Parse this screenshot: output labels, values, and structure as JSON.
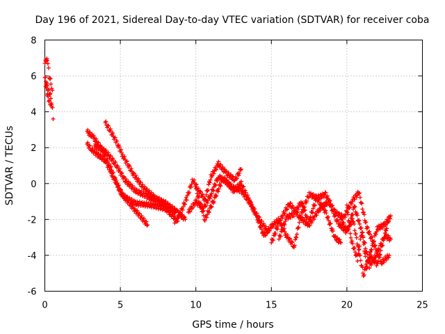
{
  "chart_data": {
    "type": "scatter",
    "title": "Day 196 of 2021, Sidereal Day-to-day VTEC variation (SDTVAR) for receiver coba",
    "xlabel": "GPS time / hours",
    "ylabel": "SDTVAR / TECUs",
    "xlim": [
      0,
      25
    ],
    "ylim": [
      -6,
      8
    ],
    "xticks": [
      0,
      5,
      10,
      15,
      20,
      25
    ],
    "yticks": [
      -6,
      -4,
      -2,
      0,
      2,
      4,
      6,
      8
    ],
    "xtick_labels": [
      "0",
      "5",
      "10",
      "15",
      "20",
      "25"
    ],
    "ytick_labels": [
      "-6",
      "-4",
      "-2",
      "0",
      "2",
      "4",
      "6",
      "8"
    ],
    "grid": true,
    "marker": "plus",
    "color": "#ff0000",
    "series": [
      {
        "x": [
          0.0,
          0.1,
          0.2,
          0.3,
          0.4,
          0.5
        ],
        "y": [
          6.7,
          6.9,
          6.8,
          6.0,
          5.6,
          5.2
        ]
      },
      {
        "x": [
          0.0,
          0.1,
          0.2,
          0.3,
          0.4,
          0.5,
          0.55
        ],
        "y": [
          5.9,
          5.6,
          5.3,
          5.1,
          4.8,
          4.2,
          3.6
        ]
      },
      {
        "x": [
          0.05,
          0.15,
          0.25,
          0.35,
          0.45
        ],
        "y": [
          5.4,
          5.0,
          4.7,
          4.5,
          4.3
        ]
      },
      {
        "x": [
          2.8,
          3.2,
          3.8,
          4.3,
          5.0,
          6.0,
          6.8
        ],
        "y": [
          2.9,
          2.6,
          1.9,
          1.0,
          -0.5,
          -1.5,
          -2.3
        ]
      },
      {
        "x": [
          2.8,
          3.1,
          3.5,
          4.0,
          4.5,
          5.2,
          6.0,
          7.0,
          8.0,
          8.8
        ],
        "y": [
          2.2,
          1.9,
          1.6,
          1.3,
          0.4,
          -0.7,
          -1.1,
          -1.2,
          -1.4,
          -2.1
        ]
      },
      {
        "x": [
          3.3,
          4.0,
          4.6,
          5.3,
          6.0,
          7.0,
          7.8,
          8.6
        ],
        "y": [
          2.1,
          1.8,
          1.2,
          0.2,
          -0.4,
          -0.8,
          -1.1,
          -1.6
        ]
      },
      {
        "x": [
          4.0,
          4.3,
          4.7,
          5.2,
          5.8,
          6.5,
          7.3,
          8.0,
          8.8,
          9.3
        ],
        "y": [
          3.4,
          3.0,
          2.4,
          1.5,
          0.6,
          -0.2,
          -0.8,
          -1.1,
          -1.6,
          -2.0
        ]
      },
      {
        "x": [
          8.6,
          9.0,
          9.4,
          9.8,
          10.2,
          10.6,
          11.0,
          11.5,
          12.0,
          12.6,
          13.0
        ],
        "y": [
          -2.2,
          -1.6,
          -0.8,
          0.2,
          -0.4,
          -0.9,
          0.4,
          1.1,
          0.6,
          0.2,
          0.8
        ]
      },
      {
        "x": [
          9.5,
          10.0,
          10.5,
          11.0,
          11.5,
          12.0,
          12.5,
          13.0,
          13.5,
          14.0,
          14.5
        ],
        "y": [
          -1.6,
          -1.0,
          -1.4,
          -0.6,
          0.4,
          0.1,
          -0.4,
          0.0,
          -0.9,
          -1.8,
          -2.9
        ]
      },
      {
        "x": [
          10.0,
          10.6,
          11.2,
          11.8,
          12.4,
          13.0,
          13.6,
          14.2,
          14.8
        ],
        "y": [
          -0.3,
          -2.0,
          -0.9,
          0.3,
          -0.2,
          -0.4,
          -1.1,
          -2.0,
          -2.7
        ]
      },
      {
        "x": [
          14.5,
          15.0,
          15.5,
          16.0,
          16.5,
          17.0,
          17.5,
          18.0,
          18.6,
          19.2,
          19.6
        ],
        "y": [
          -2.9,
          -2.4,
          -2.0,
          -2.9,
          -3.5,
          -1.6,
          -0.6,
          -0.8,
          -1.6,
          -3.0,
          -3.3
        ]
      },
      {
        "x": [
          15.0,
          15.6,
          16.2,
          16.8,
          17.4,
          18.0,
          18.6,
          19.2,
          19.8,
          20.4,
          20.8,
          21.3,
          21.8,
          22.3,
          22.8
        ],
        "y": [
          -3.3,
          -2.0,
          -1.1,
          -1.8,
          -2.3,
          -0.8,
          -0.6,
          -1.6,
          -1.9,
          -0.9,
          -0.5,
          -2.4,
          -3.4,
          -4.4,
          -4.0
        ]
      },
      {
        "x": [
          15.5,
          16.0,
          16.5,
          17.0,
          17.5,
          18.2,
          18.8,
          19.4,
          20.0,
          20.5,
          21.0,
          21.5,
          22.0,
          22.5,
          22.9
        ],
        "y": [
          -3.1,
          -1.9,
          -1.7,
          -1.0,
          -2.3,
          -1.4,
          -1.0,
          -2.2,
          -2.7,
          -1.3,
          -2.7,
          -4.6,
          -3.9,
          -2.9,
          -3.1
        ]
      },
      {
        "x": [
          19.6,
          20.0,
          20.4,
          20.8,
          21.1,
          21.5,
          22.0,
          22.4,
          22.8
        ],
        "y": [
          -2.0,
          -2.6,
          -2.0,
          -3.8,
          -5.1,
          -4.0,
          -4.5,
          -3.2,
          -1.9
        ]
      },
      {
        "x": [
          20.0,
          20.3,
          20.7,
          21.0,
          21.3,
          21.6,
          22.0,
          22.5,
          22.9
        ],
        "y": [
          -1.2,
          -3.2,
          -4.2,
          -2.6,
          -4.7,
          -3.7,
          -2.5,
          -2.3,
          -1.8
        ]
      }
    ]
  }
}
